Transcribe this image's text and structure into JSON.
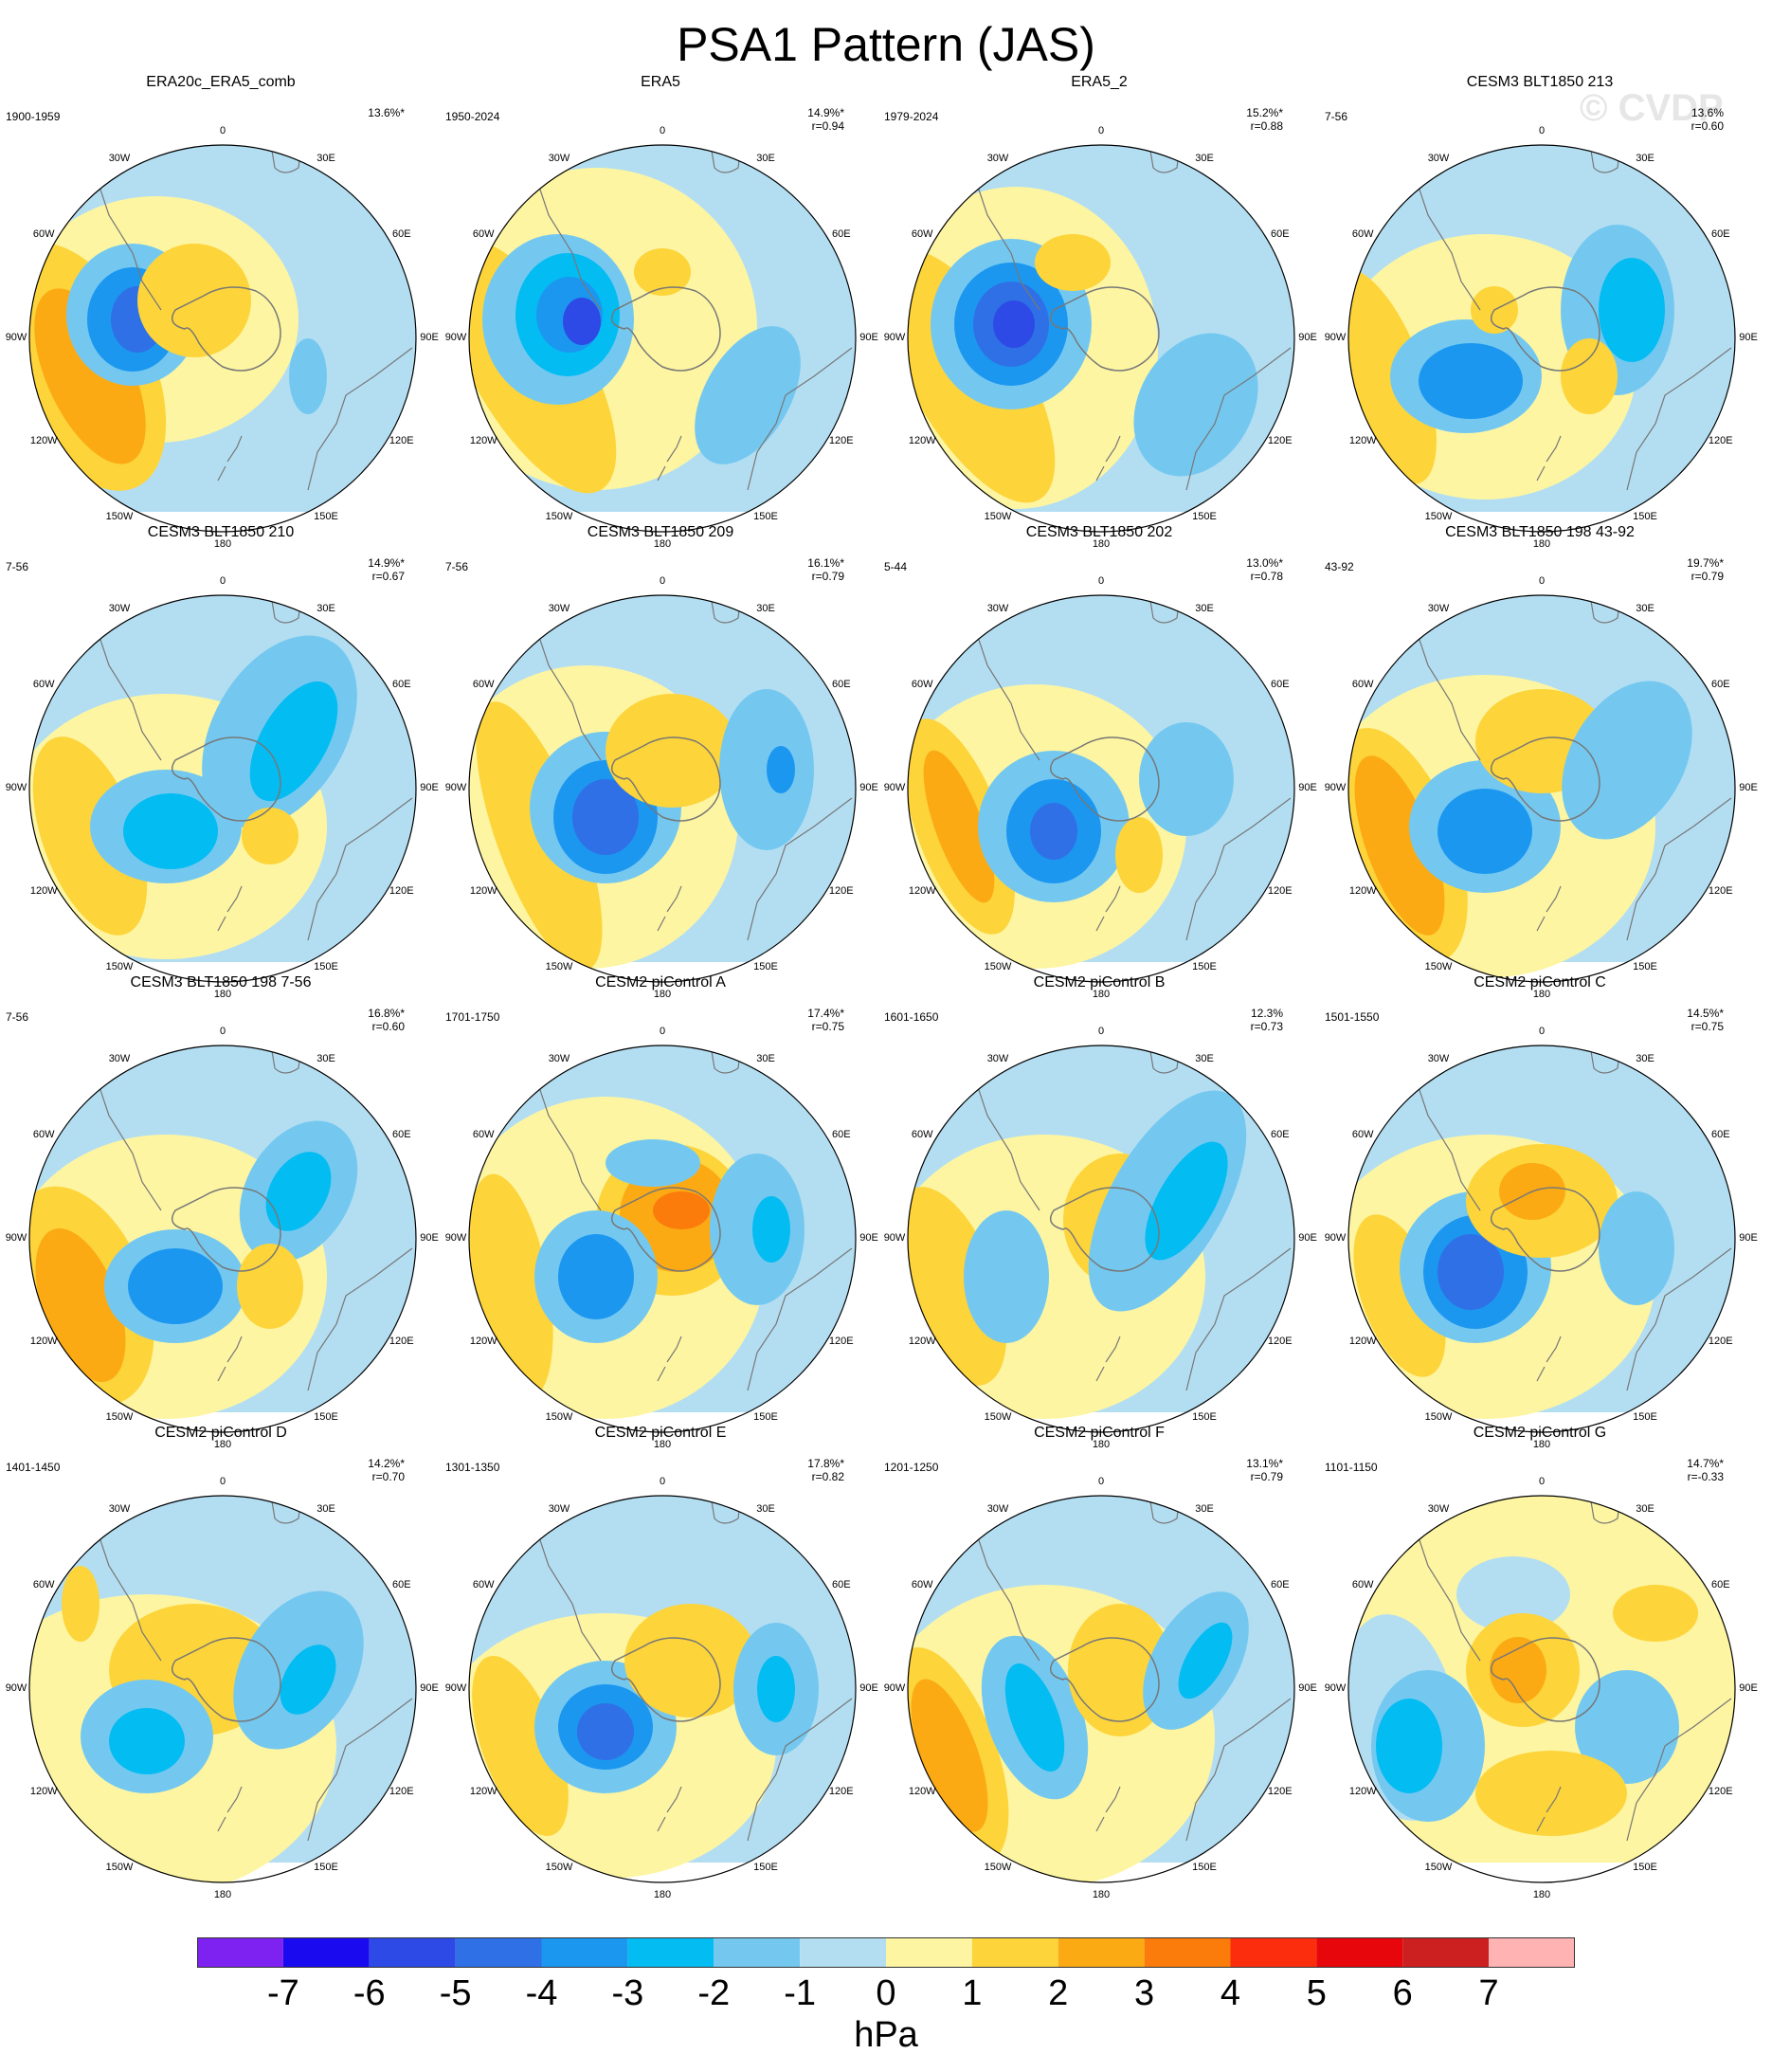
{
  "title": "PSA1 Pattern (JAS)",
  "watermark": "© CVDP",
  "longitude_labels": [
    "0",
    "30E",
    "60E",
    "90E",
    "120E",
    "150E",
    "180",
    "150W",
    "120W",
    "90W",
    "60W",
    "30W"
  ],
  "colorbar": {
    "unit": "hPa",
    "tick_labels": [
      "-7",
      "-6",
      "-5",
      "-4",
      "-3",
      "-2",
      "-1",
      "0",
      "1",
      "2",
      "3",
      "4",
      "5",
      "6",
      "7"
    ],
    "colors": [
      "#7d22f0",
      "#1a0af0",
      "#2d49e6",
      "#2f70e6",
      "#1c97f0",
      "#03bcf2",
      "#74c8f0",
      "#b3def2",
      "#fdf5a2",
      "#fdd43a",
      "#fbaa14",
      "#fb7c0b",
      "#fb2d0c",
      "#e6060b",
      "#cc1f1f",
      "#ffb3b3"
    ]
  },
  "panels": [
    {
      "name": "ERA20c_ERA5_comb",
      "period": "1900-1959",
      "pct": "13.6%*",
      "r": ""
    },
    {
      "name": "ERA5",
      "period": "1950-2024",
      "pct": "14.9%*",
      "r": "r=0.94"
    },
    {
      "name": "ERA5_2",
      "period": "1979-2024",
      "pct": "15.2%*",
      "r": "r=0.88"
    },
    {
      "name": "CESM3 BLT1850 213",
      "period": "7-56",
      "pct": "13.6%",
      "r": "r=0.60"
    },
    {
      "name": "CESM3 BLT1850 210",
      "period": "7-56",
      "pct": "14.9%*",
      "r": "r=0.67"
    },
    {
      "name": "CESM3 BLT1850 209",
      "period": "7-56",
      "pct": "16.1%*",
      "r": "r=0.79"
    },
    {
      "name": "CESM3 BLT1850 202",
      "period": "5-44",
      "pct": "13.0%*",
      "r": "r=0.78"
    },
    {
      "name": "CESM3 BLT1850 198 43-92",
      "period": "43-92",
      "pct": "19.7%*",
      "r": "r=0.79"
    },
    {
      "name": "CESM3 BLT1850 198 7-56",
      "period": "7-56",
      "pct": "16.8%*",
      "r": "r=0.60"
    },
    {
      "name": "CESM2 piControl A",
      "period": "1701-1750",
      "pct": "17.4%*",
      "r": "r=0.75"
    },
    {
      "name": "CESM2 piControl B",
      "period": "1601-1650",
      "pct": "12.3%",
      "r": "r=0.73"
    },
    {
      "name": "CESM2 piControl C",
      "period": "1501-1550",
      "pct": "14.5%*",
      "r": "r=0.75"
    },
    {
      "name": "CESM2 piControl D",
      "period": "1401-1450",
      "pct": "14.2%*",
      "r": "r=0.70"
    },
    {
      "name": "CESM2 piControl E",
      "period": "1301-1350",
      "pct": "17.8%*",
      "r": "r=0.82"
    },
    {
      "name": "CESM2 piControl F",
      "period": "1201-1250",
      "pct": "13.1%*",
      "r": "r=0.79"
    },
    {
      "name": "CESM2 piControl G",
      "period": "1101-1150",
      "pct": "14.7%*",
      "r": "r=-0.33"
    }
  ]
}
